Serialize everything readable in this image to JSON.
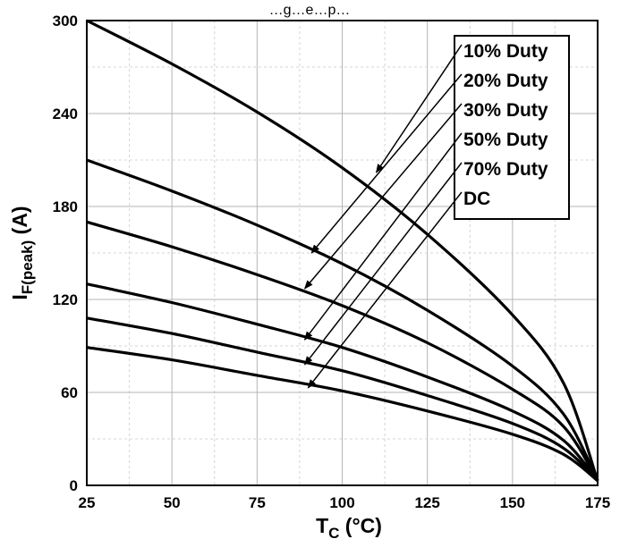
{
  "chart_data": {
    "type": "line",
    "title": "…g…e…p…",
    "xlabel_main": "T",
    "xlabel_sub": "C",
    "xlabel_unit": " (°C)",
    "ylabel_main": "I",
    "ylabel_sub": "F(peak)",
    "ylabel_unit": " (A)",
    "xlim": [
      25,
      175
    ],
    "ylim": [
      0,
      300
    ],
    "x_ticks": [
      "25",
      "50",
      "75",
      "100",
      "125",
      "150",
      "175"
    ],
    "y_ticks": [
      "0",
      "60",
      "120",
      "180",
      "240",
      "300"
    ],
    "grid": true,
    "legend_position": "top-right",
    "series": [
      {
        "name": "10% Duty",
        "x": [
          25,
          50,
          75,
          100,
          125,
          150,
          165,
          175
        ],
        "values": [
          300,
          272,
          241,
          205,
          162,
          110,
          66,
          3
        ]
      },
      {
        "name": "20% Duty",
        "x": [
          25,
          50,
          75,
          100,
          125,
          150,
          165,
          175
        ],
        "values": [
          210,
          190,
          168,
          143,
          113,
          77,
          46,
          3
        ]
      },
      {
        "name": "30% Duty",
        "x": [
          25,
          50,
          75,
          100,
          125,
          150,
          165,
          175
        ],
        "values": [
          170,
          154,
          136,
          116,
          92,
          62,
          38,
          3
        ]
      },
      {
        "name": "50% Duty",
        "x": [
          25,
          50,
          75,
          100,
          125,
          150,
          165,
          175
        ],
        "values": [
          130,
          118,
          104,
          89,
          70,
          48,
          29,
          3
        ]
      },
      {
        "name": "70% Duty",
        "x": [
          25,
          50,
          75,
          100,
          125,
          150,
          165,
          175
        ],
        "values": [
          108,
          98,
          86,
          74,
          58,
          40,
          24,
          3
        ]
      },
      {
        "name": "DC",
        "x": [
          25,
          50,
          75,
          100,
          125,
          150,
          165,
          175
        ],
        "values": [
          89,
          81,
          71,
          61,
          48,
          33,
          20,
          3
        ]
      }
    ],
    "legend_entries": [
      "10% Duty",
      "20% Duty",
      "30% Duty",
      "50% Duty",
      "70% Duty",
      "DC"
    ],
    "callout_targets": [
      {
        "label": "10% Duty",
        "x": 110,
        "y": 202
      },
      {
        "label": "20% Duty",
        "x": 91,
        "y": 150
      },
      {
        "label": "30% Duty",
        "x": 89,
        "y": 127
      },
      {
        "label": "50% Duty",
        "x": 89,
        "y": 94
      },
      {
        "label": "70% Duty",
        "x": 89,
        "y": 78
      },
      {
        "label": "DC",
        "x": 90,
        "y": 63
      }
    ]
  }
}
